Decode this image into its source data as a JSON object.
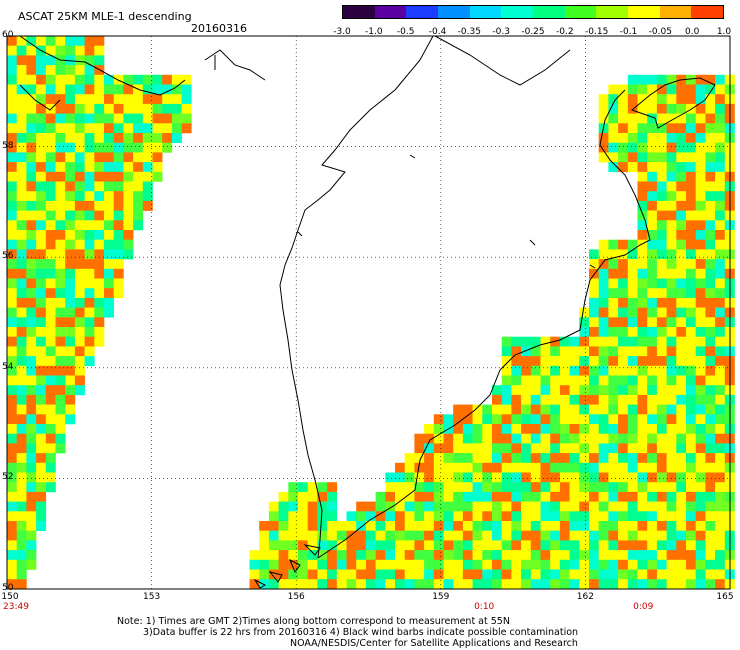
{
  "header": {
    "title": "ASCAT 25KM MLE-1 descending",
    "date": "20160316"
  },
  "colorbar": {
    "labels": [
      "-3.0",
      "-1.0",
      "-0.5",
      "-0.4",
      "-0.35",
      "-0.3",
      "-0.25",
      "-0.2",
      "-0.15",
      "-0.1",
      "-0.05",
      "0.0",
      "1.0"
    ],
    "colors": [
      "#2a0040",
      "#5a00a0",
      "#1e3cff",
      "#0090ff",
      "#00d8ff",
      "#00ffd0",
      "#00ff80",
      "#40ff20",
      "#a0ff00",
      "#ffff00",
      "#ffb000",
      "#ff4000"
    ]
  },
  "axes": {
    "lat_labels": [
      "60",
      "58",
      "56",
      "54",
      "52",
      "50"
    ],
    "lon_labels": [
      "150",
      "153",
      "156",
      "159",
      "162",
      "165"
    ],
    "time_labels": [
      {
        "text": "23:49",
        "lon": 150
      },
      {
        "text": "0:10",
        "lon": 159.9
      },
      {
        "text": "0:09",
        "lon": 163.2
      }
    ]
  },
  "notes": {
    "line1": "Note: 1) Times are GMT 2)Times along bottom correspond to measurement at 55N",
    "line2": "3)Data buffer is 22 hrs from 20160316 4) Black wind barbs indicate possible contamination",
    "line3": "NOAA/NESDIS/Center for Satellite Applications and Research"
  },
  "map": {
    "land_color": "#ffffff",
    "grid_color": "#000000"
  }
}
